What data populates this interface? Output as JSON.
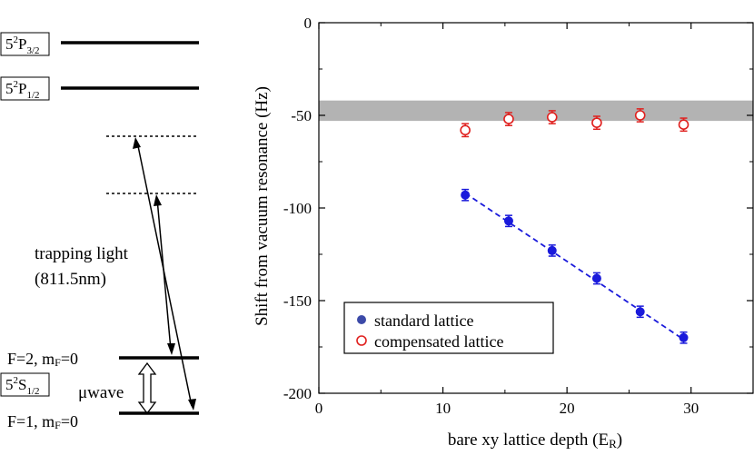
{
  "level_diagram": {
    "levels": {
      "p32": {
        "label_main": "5",
        "label_sup": "2",
        "label_letter": "P",
        "label_sub": "3/2"
      },
      "p12": {
        "label_main": "5",
        "label_sup": "2",
        "label_letter": "P",
        "label_sub": "1/2"
      },
      "s12": {
        "label_main": "5",
        "label_sup": "2",
        "label_letter": "S",
        "label_sub": "1/2"
      }
    },
    "f2_label": {
      "prefix": "F=2, m",
      "sub": "F",
      "suffix": "=0"
    },
    "f1_label": {
      "prefix": "F=1, m",
      "sub": "F",
      "suffix": "=0"
    },
    "trapping_light_line1": "trapping light",
    "trapping_light_line2": "(811.5nm)",
    "microwave_label": "μwave"
  },
  "chart_data": {
    "type": "scatter",
    "xlabel": "bare xy lattice depth (E",
    "xlabel_sub": "R",
    "xlabel_end": ")",
    "ylabel": "Shift from vacuum resonance (Hz)",
    "xlim": [
      0,
      35
    ],
    "ylim": [
      -200,
      0
    ],
    "x_ticks": [
      0,
      10,
      20,
      30
    ],
    "y_ticks": [
      0,
      -50,
      -100,
      -150,
      -200
    ],
    "x_tick_labels": [
      "0",
      "10",
      "20",
      "30"
    ],
    "y_tick_labels": [
      "0",
      "-50",
      "-100",
      "-150",
      "-200"
    ],
    "band": {
      "y_low": -53,
      "y_high": -42,
      "color": "#b3b3b3"
    },
    "series": [
      {
        "name": "standard lattice",
        "marker": "filled-circle",
        "color": "#1a1adb",
        "x": [
          11.8,
          15.3,
          18.8,
          22.4,
          25.9,
          29.4
        ],
        "y": [
          -93,
          -107,
          -123,
          -138,
          -156,
          -170
        ],
        "yerr": [
          3,
          3,
          3,
          3,
          3,
          3
        ],
        "fit_line": {
          "x": [
            11.8,
            29.4
          ],
          "y": [
            -92,
            -171
          ],
          "style": "dashed"
        }
      },
      {
        "name": "compensated lattice",
        "marker": "open-circle",
        "color": "#e0201e",
        "x": [
          11.8,
          15.3,
          18.8,
          22.4,
          25.9,
          29.4
        ],
        "y": [
          -58,
          -52,
          -51,
          -54,
          -50,
          -55
        ],
        "yerr": [
          3.5,
          3.5,
          3.5,
          3.5,
          3.5,
          3.5
        ]
      }
    ],
    "legend_position": "bottom-left"
  }
}
